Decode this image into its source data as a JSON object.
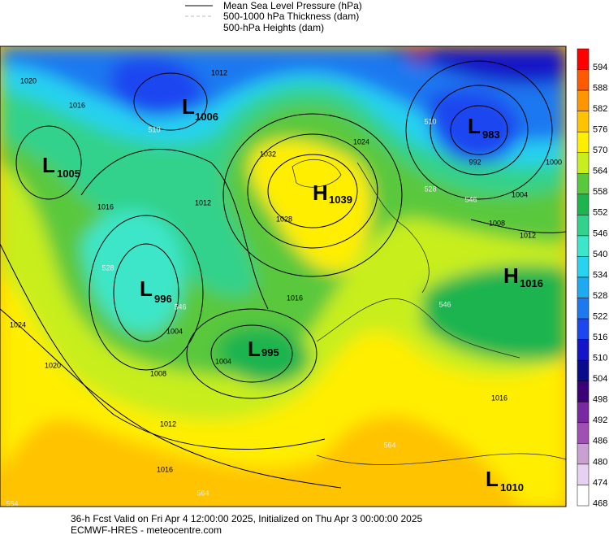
{
  "legend": [
    "Mean Sea Level Pressure (hPa)",
    "500-1000 hPa Thickness (dam)",
    "500-hPa Heights (dam)"
  ],
  "colorbar": {
    "levels": [
      594,
      588,
      582,
      576,
      570,
      564,
      558,
      552,
      546,
      540,
      534,
      528,
      522,
      516,
      510,
      504,
      498,
      492,
      486,
      480,
      474,
      468
    ],
    "colors": [
      "#ff0000",
      "#ff5a00",
      "#ff9600",
      "#ffc300",
      "#ffee00",
      "#c8ee1e",
      "#5ac83c",
      "#1eb450",
      "#32d28c",
      "#3ce6c8",
      "#28d2f0",
      "#1eaaf0",
      "#1e78f0",
      "#1e46f0",
      "#1414c8",
      "#0a0a8c",
      "#3c0078",
      "#7828a0",
      "#a050b4",
      "#c8a0d2",
      "#e6d2f0",
      "#ffffff"
    ]
  },
  "centers": [
    {
      "type": "L",
      "value": "1006"
    },
    {
      "type": "L",
      "value": "1005"
    },
    {
      "type": "L",
      "value": "983"
    },
    {
      "type": "H",
      "value": "1039"
    },
    {
      "type": "L",
      "value": "996"
    },
    {
      "type": "L",
      "value": "995"
    },
    {
      "type": "H",
      "value": "1016"
    },
    {
      "type": "L",
      "value": "1010"
    }
  ],
  "isobars": [
    1020,
    1016,
    1012,
    1024,
    1032,
    1028,
    1016,
    1012,
    1016,
    1024,
    1020,
    1008,
    1004,
    1004,
    1012,
    1016,
    1000,
    1004,
    1008,
    1012,
    1016,
    992
  ],
  "thickness": [
    510,
    510,
    528,
    546,
    546,
    564,
    564,
    564,
    528,
    546
  ],
  "footer": [
    "36-h Fcst Valid on Fri Apr  4 12:00:00 2025, Initialized on Thu Apr  3 00:00:00 2025",
    "ECMWF-HRES  - meteocentre.com"
  ]
}
